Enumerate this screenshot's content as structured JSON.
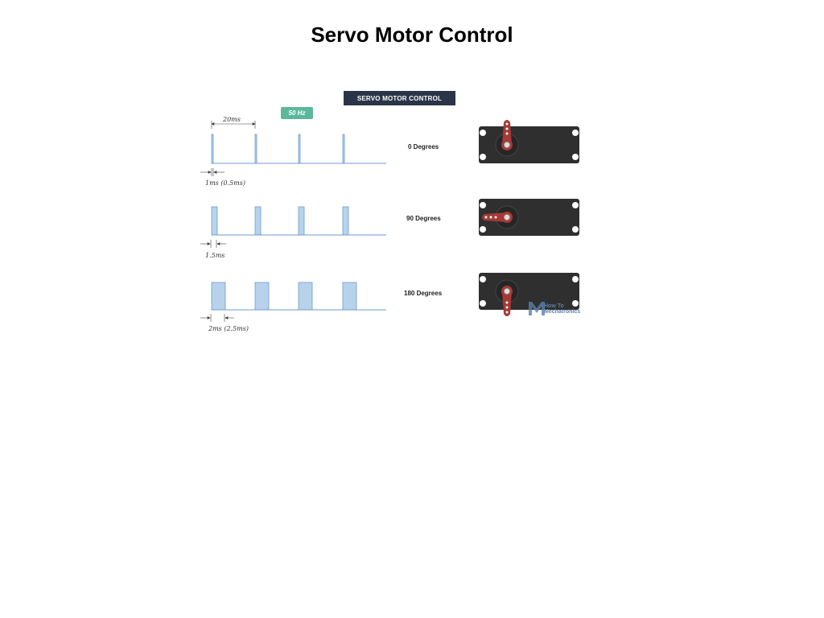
{
  "page": {
    "title": "Servo Motor Control"
  },
  "diagram": {
    "banner": "SERVO MOTOR CONTROL",
    "frequency_badge": "50 Hz",
    "period_label": "20ms",
    "rows": [
      {
        "pulse_label": "1ms  (0.5ms)",
        "angle_label": "0 Degrees",
        "horn_angle": 0
      },
      {
        "pulse_label": "1.5ms",
        "angle_label": "90 Degrees",
        "horn_angle": 90
      },
      {
        "pulse_label": "2ms  (2.5ms)",
        "angle_label": "180 Degrees",
        "horn_angle": 180
      }
    ],
    "colors": {
      "banner_bg": "#2b3548",
      "badge_bg": "#5bb89a",
      "pulse_fill": "#b7d3ec",
      "pulse_stroke": "#6c9bd0",
      "servo_body": "#2f2f2f",
      "horn": "#a53a36"
    },
    "watermark": {
      "logo_text": "How To Mechatronics",
      "icon": "M-logo-icon"
    }
  }
}
